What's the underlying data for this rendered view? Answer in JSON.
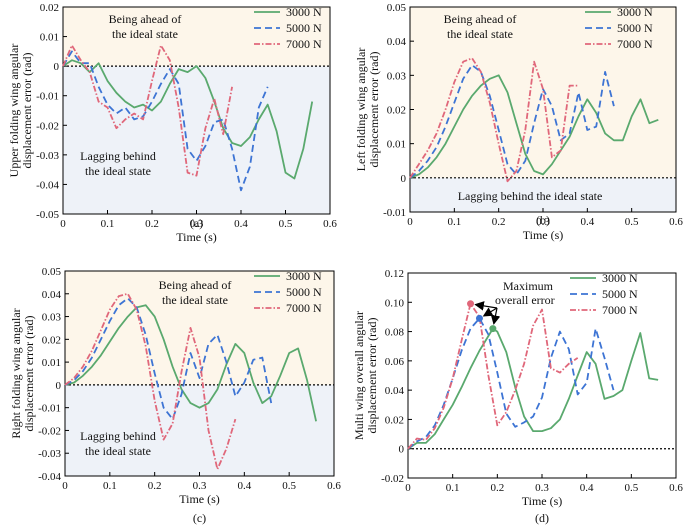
{
  "colors": {
    "ahead_region": "#fdf6ea",
    "lagging_region": "#eef2f8",
    "series": {
      "3000 N": "#5aa96e",
      "5000 N": "#3d74d4",
      "7000 N": "#e0677a"
    },
    "arrow": "#000000"
  },
  "chart_data": [
    {
      "panel": "(a)",
      "type": "line",
      "xlabel": "Time (s)",
      "ylabel": [
        "Upper folding wing angular",
        "displacement error (rad)"
      ],
      "xlim": [
        0,
        0.6
      ],
      "ylim": [
        -0.05,
        0.02
      ],
      "xticks": [
        "0",
        "0.1",
        "0.2",
        "0.3",
        "0.4",
        "0.5",
        "0.6"
      ],
      "yticks": [
        "-0.05",
        "-0.04",
        "-0.03",
        "-0.02",
        "-0.01",
        "0",
        "0.01",
        "0.02"
      ],
      "regions": {
        "above": "Being ahead of the ideal state",
        "below": "Lagging behind the ideal state"
      },
      "legend": [
        "3000 N",
        "5000 N",
        "7000 N"
      ],
      "series": [
        {
          "name": "3000 N",
          "x": [
            0,
            0.02,
            0.04,
            0.06,
            0.08,
            0.1,
            0.12,
            0.14,
            0.16,
            0.18,
            0.2,
            0.22,
            0.24,
            0.26,
            0.28,
            0.3,
            0.32,
            0.34,
            0.36,
            0.38,
            0.4,
            0.42,
            0.44,
            0.46,
            0.48,
            0.5,
            0.52,
            0.54,
            0.56
          ],
          "y": [
            0,
            0.002,
            0.001,
            -0.002,
            0.001,
            -0.005,
            -0.009,
            -0.012,
            -0.014,
            -0.013,
            -0.015,
            -0.012,
            -0.006,
            -0.001,
            -0.002,
            0,
            -0.004,
            -0.012,
            -0.021,
            -0.026,
            -0.027,
            -0.024,
            -0.018,
            -0.013,
            -0.022,
            -0.036,
            -0.038,
            -0.028,
            -0.012
          ]
        },
        {
          "name": "5000 N",
          "x": [
            0,
            0.02,
            0.04,
            0.06,
            0.08,
            0.1,
            0.12,
            0.14,
            0.16,
            0.18,
            0.2,
            0.22,
            0.24,
            0.26,
            0.28,
            0.3,
            0.32,
            0.34,
            0.36,
            0.38,
            0.4,
            0.42,
            0.44,
            0.46
          ],
          "y": [
            0,
            0.005,
            0.001,
            0.001,
            -0.007,
            -0.013,
            -0.016,
            -0.014,
            -0.018,
            -0.017,
            -0.012,
            -0.006,
            -0.001,
            -0.006,
            -0.028,
            -0.032,
            -0.027,
            -0.019,
            -0.018,
            -0.028,
            -0.042,
            -0.034,
            -0.014,
            -0.007
          ]
        },
        {
          "name": "7000 N",
          "x": [
            0,
            0.02,
            0.04,
            0.06,
            0.08,
            0.1,
            0.12,
            0.14,
            0.16,
            0.18,
            0.2,
            0.22,
            0.24,
            0.26,
            0.28,
            0.3,
            0.32,
            0.34,
            0.36,
            0.38
          ],
          "y": [
            0,
            0.007,
            0.002,
            -0.002,
            -0.012,
            -0.014,
            -0.021,
            -0.018,
            -0.016,
            -0.018,
            -0.005,
            0.007,
            0.002,
            -0.014,
            -0.036,
            -0.037,
            -0.021,
            -0.011,
            -0.023,
            -0.007
          ]
        }
      ]
    },
    {
      "panel": "(b)",
      "type": "line",
      "xlabel": "Time (s)",
      "ylabel": [
        "Left folding wing angular",
        "displacement error (rad)"
      ],
      "xlim": [
        0,
        0.6
      ],
      "ylim": [
        -0.01,
        0.05
      ],
      "xticks": [
        "0",
        "0.1",
        "0.2",
        "0.3",
        "0.4",
        "0.5",
        "0.6"
      ],
      "yticks": [
        "-0.01",
        "0",
        "0.01",
        "0.02",
        "0.03",
        "0.04",
        "0.05"
      ],
      "regions": {
        "above": "Being ahead of the ideal state",
        "below": "Lagging behind the ideal state"
      },
      "legend": [
        "3000 N",
        "5000 N",
        "7000 N"
      ],
      "series": [
        {
          "name": "3000 N",
          "x": [
            0,
            0.02,
            0.04,
            0.06,
            0.08,
            0.1,
            0.12,
            0.14,
            0.16,
            0.18,
            0.2,
            0.22,
            0.24,
            0.26,
            0.28,
            0.3,
            0.32,
            0.34,
            0.36,
            0.38,
            0.4,
            0.42,
            0.44,
            0.46,
            0.48,
            0.5,
            0.52,
            0.54,
            0.56
          ],
          "y": [
            0,
            0.001,
            0.003,
            0.006,
            0.01,
            0.015,
            0.02,
            0.024,
            0.027,
            0.029,
            0.03,
            0.025,
            0.016,
            0.007,
            0.002,
            0.001,
            0.004,
            0.008,
            0.012,
            0.018,
            0.023,
            0.019,
            0.013,
            0.011,
            0.011,
            0.018,
            0.023,
            0.016,
            0.017
          ]
        },
        {
          "name": "5000 N",
          "x": [
            0,
            0.02,
            0.04,
            0.06,
            0.08,
            0.1,
            0.12,
            0.14,
            0.16,
            0.18,
            0.2,
            0.22,
            0.24,
            0.26,
            0.28,
            0.3,
            0.32,
            0.34,
            0.36,
            0.38,
            0.4,
            0.42,
            0.44,
            0.46
          ],
          "y": [
            0,
            0.002,
            0.005,
            0.009,
            0.015,
            0.022,
            0.029,
            0.033,
            0.031,
            0.024,
            0.014,
            0.004,
            0.001,
            0.005,
            0.016,
            0.026,
            0.021,
            0.011,
            0.013,
            0.025,
            0.014,
            0.015,
            0.031,
            0.021
          ]
        },
        {
          "name": "7000 N",
          "x": [
            0,
            0.02,
            0.04,
            0.06,
            0.08,
            0.1,
            0.12,
            0.14,
            0.16,
            0.18,
            0.2,
            0.22,
            0.24,
            0.26,
            0.28,
            0.3,
            0.32,
            0.34,
            0.36,
            0.38
          ],
          "y": [
            0,
            0.004,
            0.008,
            0.013,
            0.02,
            0.028,
            0.034,
            0.035,
            0.031,
            0.022,
            0.01,
            -0.001,
            0.002,
            0.014,
            0.034,
            0.026,
            0.006,
            0.008,
            0.027,
            0.027
          ]
        }
      ]
    },
    {
      "panel": "(c)",
      "type": "line",
      "xlabel": "Time (s)",
      "ylabel": [
        "Right folding wing angular",
        "displacement error (rad)"
      ],
      "xlim": [
        0,
        0.6
      ],
      "ylim": [
        -0.04,
        0.05
      ],
      "xticks": [
        "0",
        "0.1",
        "0.2",
        "0.3",
        "0.4",
        "0.5",
        "0.6"
      ],
      "yticks": [
        "-0.04",
        "-0.03",
        "-0.02",
        "-0.01",
        "0",
        "0.01",
        "0.02",
        "0.03",
        "0.04",
        "0.05"
      ],
      "regions": {
        "above": "Being ahead of the ideal state",
        "below": "Lagging behind the ideal state"
      },
      "legend": [
        "3000 N",
        "5000 N",
        "7000 N"
      ],
      "series": [
        {
          "name": "3000 N",
          "x": [
            0,
            0.02,
            0.04,
            0.06,
            0.08,
            0.1,
            0.12,
            0.14,
            0.16,
            0.18,
            0.2,
            0.22,
            0.24,
            0.26,
            0.28,
            0.3,
            0.32,
            0.34,
            0.36,
            0.38,
            0.4,
            0.42,
            0.44,
            0.46,
            0.48,
            0.5,
            0.52,
            0.54,
            0.56
          ],
          "y": [
            0,
            0.001,
            0.004,
            0.008,
            0.013,
            0.019,
            0.025,
            0.03,
            0.034,
            0.035,
            0.03,
            0.02,
            0.008,
            -0.002,
            -0.008,
            -0.01,
            -0.008,
            -0.002,
            0.009,
            0.018,
            0.014,
            0.001,
            -0.008,
            -0.005,
            0.004,
            0.014,
            0.016,
            0.002,
            -0.016
          ]
        },
        {
          "name": "5000 N",
          "x": [
            0,
            0.02,
            0.04,
            0.06,
            0.08,
            0.1,
            0.12,
            0.14,
            0.16,
            0.18,
            0.2,
            0.22,
            0.24,
            0.26,
            0.28,
            0.3,
            0.32,
            0.34,
            0.36,
            0.38,
            0.4,
            0.42,
            0.44,
            0.46
          ],
          "y": [
            0,
            0.002,
            0.006,
            0.012,
            0.02,
            0.028,
            0.035,
            0.038,
            0.034,
            0.022,
            0.005,
            -0.01,
            -0.015,
            -0.004,
            0.014,
            0.003,
            0.018,
            0.022,
            0.01,
            -0.005,
            0.001,
            0.011,
            0.012,
            -0.008
          ]
        },
        {
          "name": "7000 N",
          "x": [
            0,
            0.02,
            0.04,
            0.06,
            0.08,
            0.1,
            0.12,
            0.14,
            0.16,
            0.18,
            0.2,
            0.22,
            0.24,
            0.26,
            0.28,
            0.3,
            0.32,
            0.34,
            0.36,
            0.38
          ],
          "y": [
            0,
            0.003,
            0.008,
            0.015,
            0.024,
            0.033,
            0.039,
            0.04,
            0.033,
            0.017,
            -0.007,
            -0.024,
            -0.017,
            0.006,
            0.025,
            0.012,
            -0.02,
            -0.037,
            -0.028,
            -0.015
          ]
        }
      ]
    },
    {
      "panel": "(d)",
      "type": "line",
      "xlabel": "Time (s)",
      "ylabel": [
        "Multi wing overall angular",
        "displacement error (rad)"
      ],
      "xlim": [
        0,
        0.6
      ],
      "ylim": [
        -0.02,
        0.12
      ],
      "xticks": [
        "0",
        "0.1",
        "0.2",
        "0.3",
        "0.4",
        "0.5",
        "0.6"
      ],
      "yticks": [
        "-0.02",
        "0",
        "0.02",
        "0.04",
        "0.06",
        "0.08",
        "0.10",
        "0.12"
      ],
      "legend": [
        "3000 N",
        "5000 N",
        "7000 N"
      ],
      "annotation": {
        "text": [
          "Maximum",
          "overall error"
        ],
        "markers": [
          {
            "series": "7000 N",
            "x": 0.14,
            "y": 0.099
          },
          {
            "series": "5000 N",
            "x": 0.16,
            "y": 0.089
          },
          {
            "series": "3000 N",
            "x": 0.19,
            "y": 0.082
          }
        ]
      },
      "series": [
        {
          "name": "3000 N",
          "x": [
            0,
            0.02,
            0.04,
            0.06,
            0.08,
            0.1,
            0.12,
            0.14,
            0.16,
            0.18,
            0.19,
            0.2,
            0.22,
            0.24,
            0.26,
            0.28,
            0.3,
            0.32,
            0.34,
            0.36,
            0.38,
            0.4,
            0.42,
            0.44,
            0.46,
            0.48,
            0.5,
            0.52,
            0.54,
            0.56
          ],
          "y": [
            0,
            0.004,
            0.004,
            0.01,
            0.02,
            0.03,
            0.042,
            0.055,
            0.067,
            0.077,
            0.082,
            0.08,
            0.066,
            0.042,
            0.022,
            0.012,
            0.012,
            0.014,
            0.02,
            0.034,
            0.05,
            0.066,
            0.058,
            0.034,
            0.036,
            0.04,
            0.06,
            0.079,
            0.048,
            0.047
          ]
        },
        {
          "name": "5000 N",
          "x": [
            0,
            0.02,
            0.04,
            0.06,
            0.08,
            0.1,
            0.12,
            0.14,
            0.16,
            0.18,
            0.2,
            0.22,
            0.24,
            0.26,
            0.28,
            0.3,
            0.32,
            0.34,
            0.36,
            0.38,
            0.4,
            0.42,
            0.44,
            0.46
          ],
          "y": [
            0,
            0.005,
            0.008,
            0.016,
            0.03,
            0.048,
            0.067,
            0.082,
            0.089,
            0.078,
            0.052,
            0.024,
            0.015,
            0.018,
            0.022,
            0.035,
            0.062,
            0.08,
            0.068,
            0.037,
            0.045,
            0.082,
            0.062,
            0.04
          ]
        },
        {
          "name": "7000 N",
          "x": [
            0,
            0.02,
            0.04,
            0.06,
            0.08,
            0.1,
            0.12,
            0.14,
            0.16,
            0.18,
            0.2,
            0.22,
            0.24,
            0.26,
            0.28,
            0.3,
            0.32,
            0.34,
            0.36,
            0.38
          ],
          "y": [
            0,
            0.007,
            0.006,
            0.014,
            0.028,
            0.048,
            0.074,
            0.099,
            0.09,
            0.05,
            0.016,
            0.025,
            0.04,
            0.058,
            0.084,
            0.095,
            0.055,
            0.052,
            0.058,
            0.062
          ]
        }
      ]
    }
  ]
}
